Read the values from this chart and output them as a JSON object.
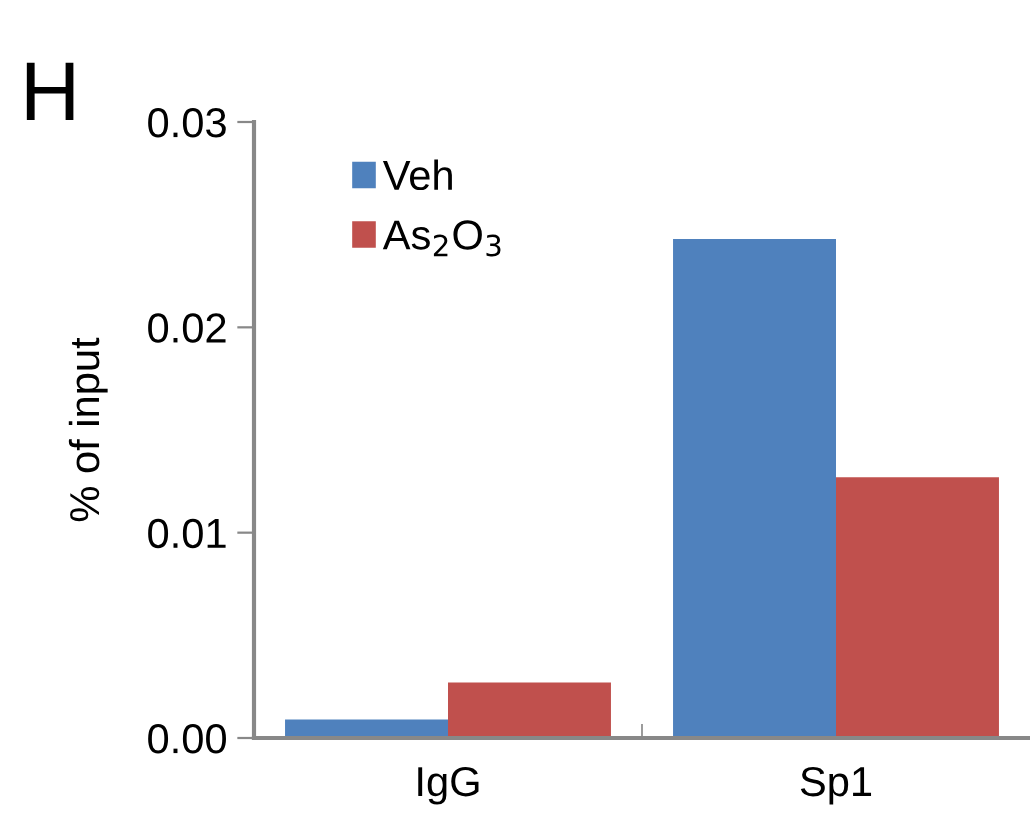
{
  "chart_data": {
    "type": "bar",
    "ylabel": "% of input",
    "annotations": [
      "H"
    ],
    "categories": [
      "IgG",
      "Sp1"
    ],
    "series": [
      {
        "name": "Veh",
        "color": "#4f81bd",
        "values": [
          0.0009,
          0.0243
        ]
      },
      {
        "name": "As$_{2}$O$_{3}$",
        "color": "#c0504d",
        "values": [
          0.0027,
          0.0127
        ]
      }
    ],
    "ylim": [
      0,
      0.03
    ],
    "yticks": [
      {
        "value": 0,
        "label": "0.00"
      },
      {
        "value": 0.01,
        "label": "0.01"
      },
      {
        "value": 0.02,
        "label": "0.02"
      },
      {
        "value": 0.03,
        "label": "0.03"
      }
    ],
    "grid": false,
    "legend": "top left"
  }
}
